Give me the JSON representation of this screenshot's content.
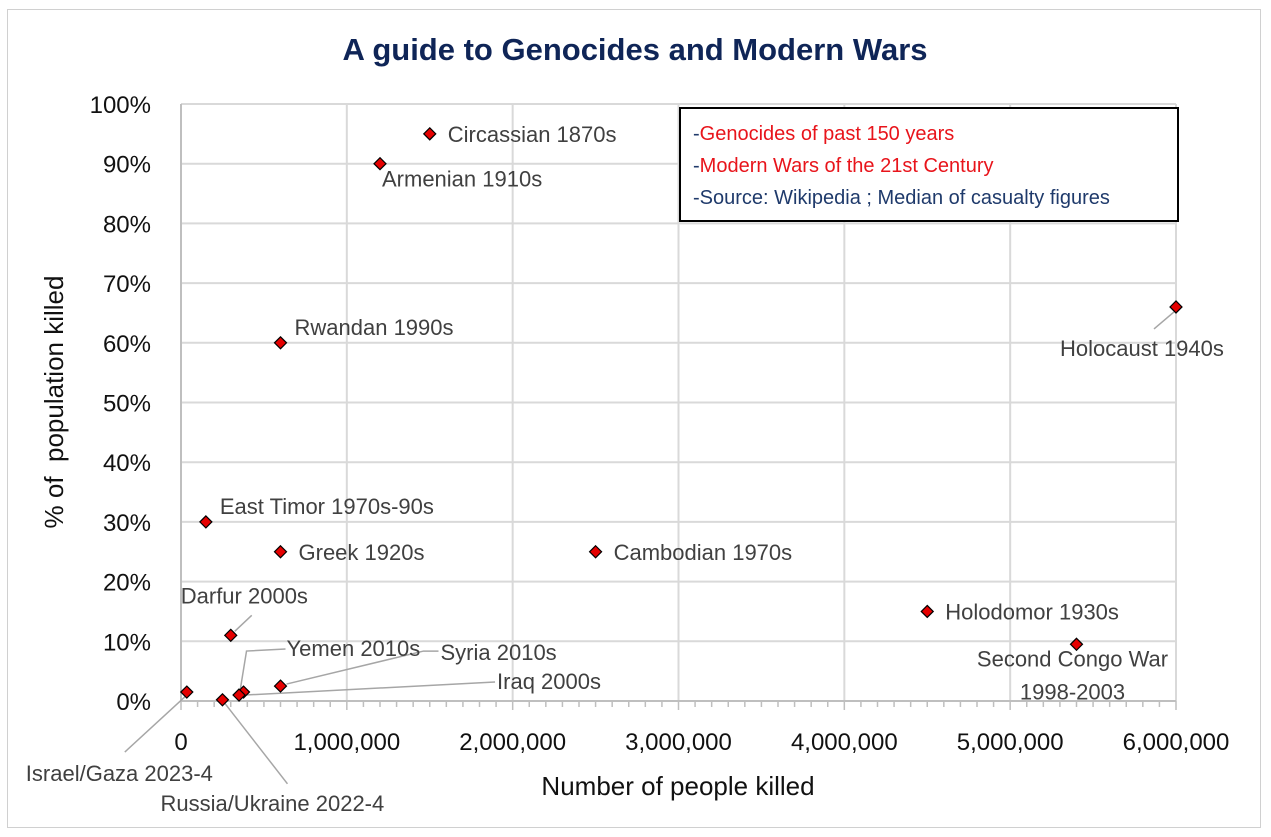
{
  "colors": {
    "title": "#0f2557",
    "marker_fill": "#e50000",
    "marker_stroke": "#000000",
    "grid": "#d9d9d9",
    "label": "#404040",
    "note_red": "#e8141b",
    "note_blue": "#1f3a6b"
  },
  "chart_data": {
    "type": "scatter",
    "title": "A guide to Genocides and Modern Wars",
    "xlabel": "Number of people killed",
    "ylabel": "% of  population killed",
    "xlim": [
      0,
      6000000
    ],
    "ylim": [
      0,
      100
    ],
    "x_ticks": [
      0,
      1000000,
      2000000,
      3000000,
      4000000,
      5000000,
      6000000
    ],
    "x_tick_labels": [
      "0",
      "1,000,000",
      "2,000,000",
      "3,000,000",
      "4,000,000",
      "5,000,000",
      "6,000,000"
    ],
    "x_minor_step": 100000,
    "y_ticks": [
      0,
      10,
      20,
      30,
      40,
      50,
      60,
      70,
      80,
      90,
      100
    ],
    "y_tick_labels": [
      "0%",
      "10%",
      "20%",
      "30%",
      "40%",
      "50%",
      "60%",
      "70%",
      "80%",
      "90%",
      "100%"
    ],
    "grid": true,
    "marker": "diamond",
    "points": [
      {
        "label": "Circassian 1870s",
        "x": 1500000,
        "y": 95,
        "label_pos": "right"
      },
      {
        "label": "Armenian 1910s",
        "x": 1200000,
        "y": 90,
        "label_pos": "below-right"
      },
      {
        "label": "Rwandan 1990s",
        "x": 600000,
        "y": 60,
        "label_pos": "above-right"
      },
      {
        "label": "Holocaust 1940s",
        "x": 6000000,
        "y": 66,
        "label_pos": "below-left-leader"
      },
      {
        "label": "East Timor 1970s-90s",
        "x": 150000,
        "y": 30,
        "label_pos": "above-right"
      },
      {
        "label": "Greek 1920s",
        "x": 600000,
        "y": 25,
        "label_pos": "right"
      },
      {
        "label": "Cambodian 1970s",
        "x": 2500000,
        "y": 25,
        "label_pos": "right"
      },
      {
        "label": "Darfur 2000s",
        "x": 300000,
        "y": 11,
        "label_pos": "above-leader"
      },
      {
        "label": "Holodomor 1930s",
        "x": 4500000,
        "y": 15,
        "label_pos": "right"
      },
      {
        "label": "Second Congo War 1998-2003",
        "label_lines": [
          "Second Congo War",
          "1998-2003"
        ],
        "x": 5400000,
        "y": 9.5,
        "label_pos": "below"
      },
      {
        "label": "Israel/Gaza 2023-4",
        "x": 35000,
        "y": 1.5,
        "label_pos": "below-left-leader"
      },
      {
        "label": "Russia/Ukraine 2022-4",
        "x": 250000,
        "y": 0.2,
        "label_pos": "below-right-leader"
      },
      {
        "label": "Yemen 2010s",
        "x": 377000,
        "y": 1.5,
        "label_pos": "above-right-leader"
      },
      {
        "label": "Syria 2010s",
        "x": 600000,
        "y": 2.5,
        "label_pos": "right-leader"
      },
      {
        "label": "Iraq 2000s",
        "x": 350000,
        "y": 1,
        "label_pos": "right-leader"
      }
    ]
  },
  "notes": {
    "genocides": {
      "prefix": "-",
      "text": "Genocides of past 150 years"
    },
    "wars": {
      "prefix": "-",
      "text": "Modern Wars of the 21st Century"
    },
    "source": {
      "prefix": "-",
      "text": "Source: Wikipedia ; Median of casualty figures"
    }
  }
}
